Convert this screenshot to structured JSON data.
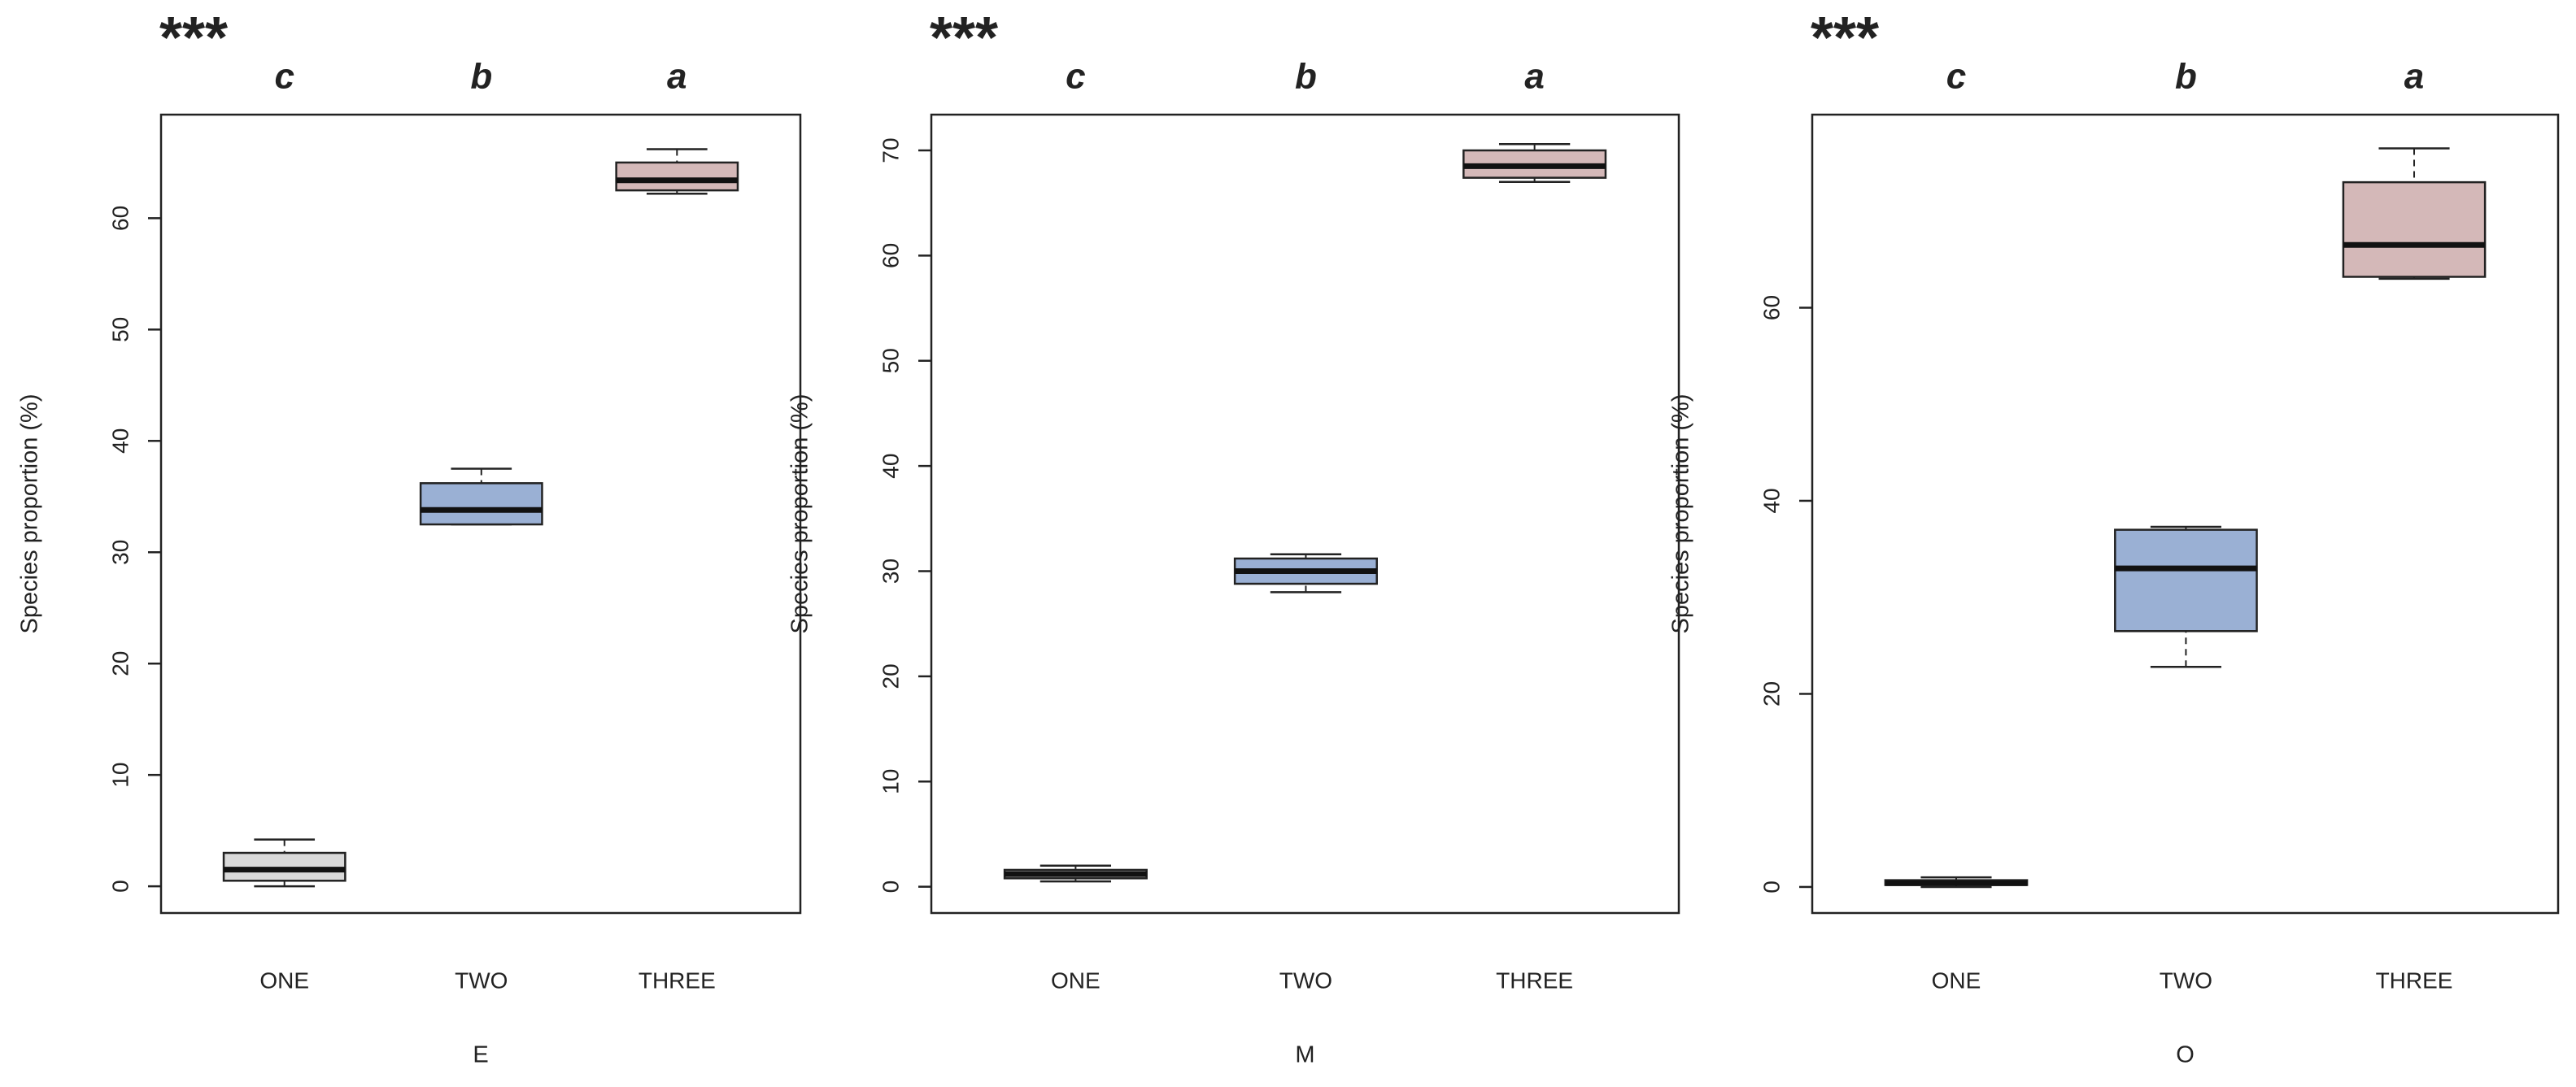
{
  "chart_data": [
    {
      "type": "box",
      "title": "***",
      "annotations": [
        "c",
        "b",
        "a"
      ],
      "categories": [
        "ONE",
        "TWO",
        "THREE"
      ],
      "x_label": "E",
      "y_label": "Species proportion (%)",
      "whisker_low": [
        0,
        32.5,
        62.2
      ],
      "q1": [
        0.5,
        32.5,
        62.5
      ],
      "median": [
        1.5,
        33.8,
        63.4
      ],
      "q3": [
        3,
        36.2,
        65
      ],
      "whisker_high": [
        4.2,
        37.5,
        66.2
      ],
      "colors": [
        "#d9d9d9",
        "#9ab0d4",
        "#d4b8b8"
      ],
      "ylim": [
        -2.4,
        69.3
      ],
      "yticks": [
        0,
        10,
        20,
        30,
        40,
        50,
        60
      ]
    },
    {
      "type": "box",
      "title": "***",
      "annotations": [
        "c",
        "b",
        "a"
      ],
      "categories": [
        "ONE",
        "TWO",
        "THREE"
      ],
      "x_label": "M",
      "y_label": "Species proportion (%)",
      "whisker_low": [
        0.5,
        28,
        67
      ],
      "q1": [
        0.8,
        28.8,
        67.4
      ],
      "median": [
        1.2,
        30,
        68.5
      ],
      "q3": [
        1.6,
        31.2,
        70
      ],
      "whisker_high": [
        2,
        31.6,
        70.6
      ],
      "colors": [
        "#d9d9d9",
        "#9ab0d4",
        "#d4b8b8"
      ],
      "ylim": [
        -2.5,
        73.4
      ],
      "yticks": [
        0,
        10,
        20,
        30,
        40,
        50,
        60,
        70
      ]
    },
    {
      "type": "box",
      "title": "***",
      "annotations": [
        "c",
        "b",
        "a"
      ],
      "categories": [
        "ONE",
        "TWO",
        "THREE"
      ],
      "x_label": "O",
      "y_label": "Species proportion (%)",
      "whisker_low": [
        0,
        22.8,
        63
      ],
      "q1": [
        0.2,
        26.5,
        63.2
      ],
      "median": [
        0.4,
        33,
        66.5
      ],
      "q3": [
        0.7,
        37,
        73
      ],
      "whisker_high": [
        1,
        37.3,
        76.5
      ],
      "colors": [
        "#d9d9d9",
        "#9ab0d4",
        "#d4b8b8"
      ],
      "ylim": [
        -2.7,
        80
      ],
      "yticks": [
        0,
        20,
        40,
        60
      ]
    }
  ]
}
